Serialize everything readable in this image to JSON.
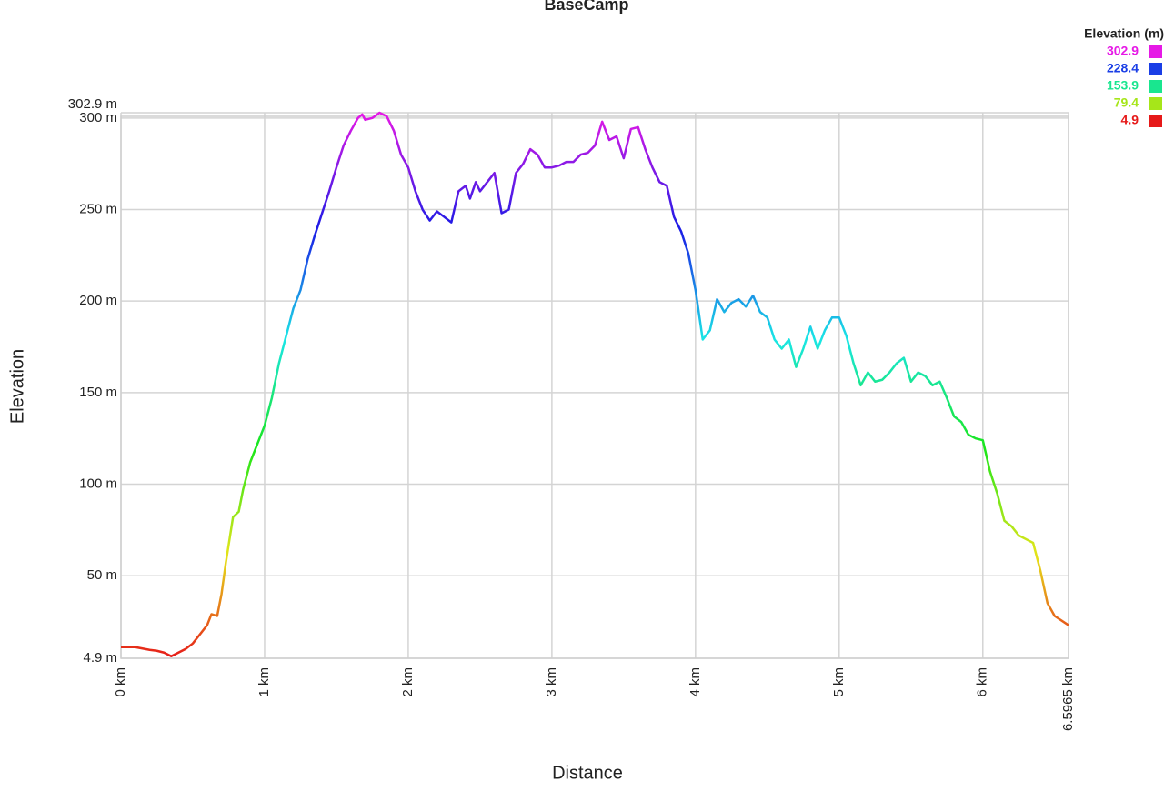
{
  "chart_data": {
    "type": "line",
    "title": "BaseCamp",
    "x_label": "Distance",
    "y_label": "Elevation",
    "legend_title": "Elevation (m)",
    "legend_position": "top-right",
    "grid": true,
    "colorscale": [
      {
        "value": 302.9,
        "color": "#e619e6"
      },
      {
        "value": 228.4,
        "color": "#1a3ee6"
      },
      {
        "value": 153.9,
        "color": "#19e68f"
      },
      {
        "value": 79.4,
        "color": "#a6e619"
      },
      {
        "value": 4.9,
        "color": "#e61919"
      }
    ],
    "xlim": [
      0,
      6.5965
    ],
    "xticks": [
      {
        "value": 0,
        "label": "0 km"
      },
      {
        "value": 1,
        "label": "1 km"
      },
      {
        "value": 2,
        "label": "2 km"
      },
      {
        "value": 3,
        "label": "3 km"
      },
      {
        "value": 4,
        "label": "4 km"
      },
      {
        "value": 5,
        "label": "5 km"
      },
      {
        "value": 6,
        "label": "6 km"
      },
      {
        "value": 6.5965,
        "label": "6.5965 km"
      }
    ],
    "ylim": [
      4.9,
      302.9
    ],
    "yticks": [
      {
        "value": 4.9,
        "label": "4.9 m"
      },
      {
        "value": 50,
        "label": "50 m"
      },
      {
        "value": 100,
        "label": "100 m"
      },
      {
        "value": 150,
        "label": "150 m"
      },
      {
        "value": 200,
        "label": "200 m"
      },
      {
        "value": 250,
        "label": "250 m"
      },
      {
        "value": 300,
        "label": "300 m"
      },
      {
        "value": 302.9,
        "label": "302.9 m"
      }
    ],
    "x": [
      0,
      0.1,
      0.2,
      0.25,
      0.3,
      0.35,
      0.4,
      0.45,
      0.5,
      0.55,
      0.6,
      0.63,
      0.67,
      0.7,
      0.73,
      0.76,
      0.78,
      0.82,
      0.85,
      0.9,
      0.95,
      1.0,
      1.05,
      1.1,
      1.15,
      1.2,
      1.25,
      1.3,
      1.35,
      1.4,
      1.45,
      1.5,
      1.55,
      1.6,
      1.65,
      1.68,
      1.7,
      1.75,
      1.8,
      1.85,
      1.9,
      1.95,
      2.0,
      2.05,
      2.1,
      2.15,
      2.2,
      2.25,
      2.3,
      2.35,
      2.4,
      2.43,
      2.47,
      2.5,
      2.55,
      2.6,
      2.65,
      2.7,
      2.75,
      2.8,
      2.85,
      2.9,
      2.95,
      3.0,
      3.05,
      3.1,
      3.15,
      3.2,
      3.25,
      3.3,
      3.35,
      3.4,
      3.45,
      3.5,
      3.55,
      3.6,
      3.65,
      3.7,
      3.75,
      3.8,
      3.85,
      3.9,
      3.95,
      4.0,
      4.05,
      4.1,
      4.15,
      4.2,
      4.25,
      4.3,
      4.35,
      4.4,
      4.45,
      4.5,
      4.55,
      4.6,
      4.65,
      4.7,
      4.75,
      4.8,
      4.85,
      4.9,
      4.95,
      5.0,
      5.05,
      5.1,
      5.15,
      5.2,
      5.25,
      5.3,
      5.35,
      5.4,
      5.45,
      5.5,
      5.55,
      5.6,
      5.65,
      5.7,
      5.75,
      5.8,
      5.85,
      5.9,
      5.95,
      6.0,
      6.05,
      6.1,
      6.15,
      6.2,
      6.25,
      6.3,
      6.35,
      6.4,
      6.45,
      6.5,
      6.5965
    ],
    "values": [
      11,
      11,
      9.5,
      9,
      8,
      6,
      8,
      10,
      13,
      18,
      23,
      29,
      28,
      40,
      57,
      72,
      82,
      85,
      97,
      112,
      122,
      132,
      147,
      166,
      181,
      196,
      206,
      223,
      236,
      248,
      260,
      273,
      285,
      293,
      300,
      302,
      299,
      300,
      302.9,
      301,
      293,
      280,
      273,
      260,
      250,
      244,
      249,
      246,
      243,
      260,
      263,
      256,
      265,
      260,
      265,
      270,
      248,
      250,
      270,
      275,
      283,
      280,
      273,
      273,
      274,
      276,
      276,
      280,
      281,
      285,
      298,
      288,
      290,
      278,
      294,
      295,
      283,
      273,
      265,
      263,
      246,
      238,
      226,
      206,
      179,
      184,
      201,
      194,
      199,
      201,
      197,
      203,
      194,
      191,
      179,
      174,
      179,
      164,
      174,
      186,
      174,
      184,
      191,
      191,
      181,
      166,
      154,
      161,
      156,
      157,
      161,
      166,
      169,
      156,
      161,
      159,
      154,
      156,
      147,
      137,
      134,
      127,
      125,
      124,
      107,
      95,
      80,
      77,
      72,
      70,
      68,
      53,
      35,
      28,
      23
    ]
  }
}
